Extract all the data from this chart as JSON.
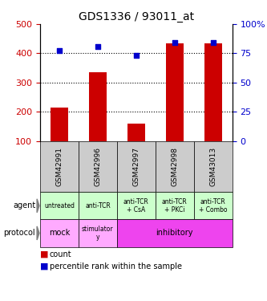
{
  "title": "GDS1336 / 93011_at",
  "samples": [
    "GSM42991",
    "GSM42996",
    "GSM42997",
    "GSM42998",
    "GSM43013"
  ],
  "counts": [
    215,
    335,
    158,
    435,
    435
  ],
  "percentile_ranks": [
    77,
    81,
    73,
    84,
    84
  ],
  "ylim_left": [
    100,
    500
  ],
  "ylim_right": [
    0,
    100
  ],
  "yticks_left": [
    100,
    200,
    300,
    400,
    500
  ],
  "yticks_right": [
    0,
    25,
    50,
    75,
    100
  ],
  "ytick_right_labels": [
    "0",
    "25",
    "50",
    "75",
    "100%"
  ],
  "bar_color": "#cc0000",
  "dot_color": "#0000cc",
  "agent_labels": [
    "untreated",
    "anti-TCR",
    "anti-TCR\n+ CsA",
    "anti-TCR\n+ PKCi",
    "anti-TCR\n+ Combo"
  ],
  "agent_bg": "#ccffcc",
  "sample_bg": "#cccccc",
  "mock_bg": "#ffaaff",
  "stimulatory_bg": "#ffaaff",
  "inhibitory_bg": "#ee44ee",
  "legend_count_color": "#cc0000",
  "legend_dot_color": "#0000cc"
}
